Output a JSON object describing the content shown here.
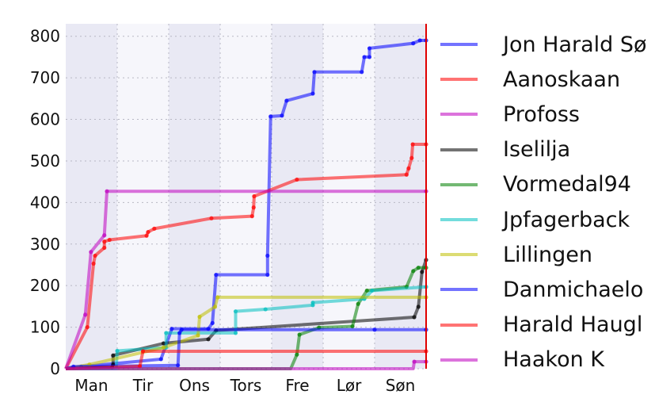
{
  "chart_data": {
    "type": "line",
    "title": "",
    "xlabel": "",
    "ylabel": "",
    "x_unit": "days since start of week",
    "xlim": [
      0,
      7
    ],
    "ylim": [
      0,
      830
    ],
    "yticks": [
      0,
      100,
      200,
      300,
      400,
      500,
      600,
      700,
      800
    ],
    "xtick_labels": [
      "Man",
      "Tir",
      "Ons",
      "Tors",
      "Fre",
      "Lør",
      "Søn"
    ],
    "grid": true,
    "alternating_day_shading": true,
    "end_marker_color": "#e00000",
    "legend_placement": "right, outside",
    "series": [
      {
        "name": "Jon Harald Sø",
        "color": "#0000ff",
        "points": [
          [
            0,
            0
          ],
          [
            0.3,
            5
          ],
          [
            1.85,
            23
          ],
          [
            2.06,
            96
          ],
          [
            2.77,
            96
          ],
          [
            2.85,
            110
          ],
          [
            2.92,
            226
          ],
          [
            3.92,
            226
          ],
          [
            3.92,
            272
          ],
          [
            3.98,
            607
          ],
          [
            4.2,
            609
          ],
          [
            4.29,
            645
          ],
          [
            4.8,
            662
          ],
          [
            4.83,
            714
          ],
          [
            5.75,
            714
          ],
          [
            5.8,
            750
          ],
          [
            5.9,
            750
          ],
          [
            5.9,
            771
          ],
          [
            6.75,
            783
          ],
          [
            6.88,
            790
          ],
          [
            7,
            790
          ]
        ]
      },
      {
        "name": "Aanoskaan",
        "color": "#ff0000",
        "points": [
          [
            0,
            0
          ],
          [
            0.42,
            100
          ],
          [
            0.54,
            253
          ],
          [
            0.57,
            272
          ],
          [
            0.75,
            291
          ],
          [
            0.75,
            306
          ],
          [
            0.85,
            310
          ],
          [
            1.57,
            320
          ],
          [
            1.6,
            329
          ],
          [
            1.72,
            337
          ],
          [
            2.83,
            362
          ],
          [
            3.62,
            367
          ],
          [
            3.65,
            388
          ],
          [
            3.66,
            415
          ],
          [
            4.49,
            455
          ],
          [
            6.62,
            467
          ],
          [
            6.66,
            482
          ],
          [
            6.72,
            507
          ],
          [
            6.74,
            540
          ],
          [
            7,
            540
          ]
        ]
      },
      {
        "name": "Profoss",
        "color": "#bf00bf",
        "points": [
          [
            0,
            0
          ],
          [
            0.38,
            130
          ],
          [
            0.49,
            281
          ],
          [
            0.75,
            321
          ],
          [
            0.8,
            427
          ],
          [
            7,
            427
          ]
        ]
      },
      {
        "name": "Iselilja",
        "color": "#000000",
        "points": [
          [
            0,
            0
          ],
          [
            0.9,
            3
          ],
          [
            0.92,
            10
          ],
          [
            0.92,
            32
          ],
          [
            1.9,
            61
          ],
          [
            2.77,
            71
          ],
          [
            2.92,
            92
          ],
          [
            6.77,
            124
          ],
          [
            6.85,
            149
          ],
          [
            6.92,
            233
          ],
          [
            7,
            262
          ]
        ]
      },
      {
        "name": "Vormedal94",
        "color": "#008000",
        "points": [
          [
            0,
            0
          ],
          [
            4.37,
            0
          ],
          [
            4.49,
            34
          ],
          [
            4.54,
            82
          ],
          [
            4.92,
            99
          ],
          [
            5.57,
            102
          ],
          [
            5.68,
            156
          ],
          [
            5.85,
            188
          ],
          [
            6.62,
            197
          ],
          [
            6.75,
            235
          ],
          [
            6.85,
            243
          ],
          [
            7,
            243
          ]
        ]
      },
      {
        "name": "Jpfagerback",
        "color": "#00bfbf",
        "points": [
          [
            0,
            0
          ],
          [
            0.98,
            0
          ],
          [
            1.0,
            43
          ],
          [
            1.95,
            51
          ],
          [
            1.95,
            86
          ],
          [
            3.3,
            86
          ],
          [
            3.3,
            138
          ],
          [
            3.88,
            143
          ],
          [
            4.8,
            153
          ],
          [
            4.8,
            159
          ],
          [
            5.8,
            168
          ],
          [
            5.95,
            188
          ],
          [
            7,
            197
          ]
        ]
      },
      {
        "name": "Lillingen",
        "color": "#bfbf00",
        "points": [
          [
            0,
            0
          ],
          [
            0.46,
            10
          ],
          [
            1.9,
            51
          ],
          [
            2.57,
            80
          ],
          [
            2.6,
            125
          ],
          [
            2.9,
            149
          ],
          [
            2.95,
            172
          ],
          [
            7,
            172
          ]
        ]
      },
      {
        "name": "Danmichaelo",
        "color": "#0000ff",
        "points": [
          [
            0,
            0
          ],
          [
            0.15,
            5
          ],
          [
            2.18,
            8
          ],
          [
            2.21,
            86
          ],
          [
            2.25,
            94
          ],
          [
            6,
            94
          ],
          [
            7,
            94
          ]
        ]
      },
      {
        "name": "Harald Haugl",
        "color": "#ff0000",
        "points": [
          [
            0,
            0
          ],
          [
            1.44,
            6
          ],
          [
            1.5,
            42
          ],
          [
            7,
            42
          ]
        ]
      },
      {
        "name": "Haakon K",
        "color": "#bf00bf",
        "points": [
          [
            0,
            0
          ],
          [
            6.75,
            0
          ],
          [
            6.77,
            17
          ],
          [
            7,
            17
          ]
        ]
      }
    ]
  }
}
